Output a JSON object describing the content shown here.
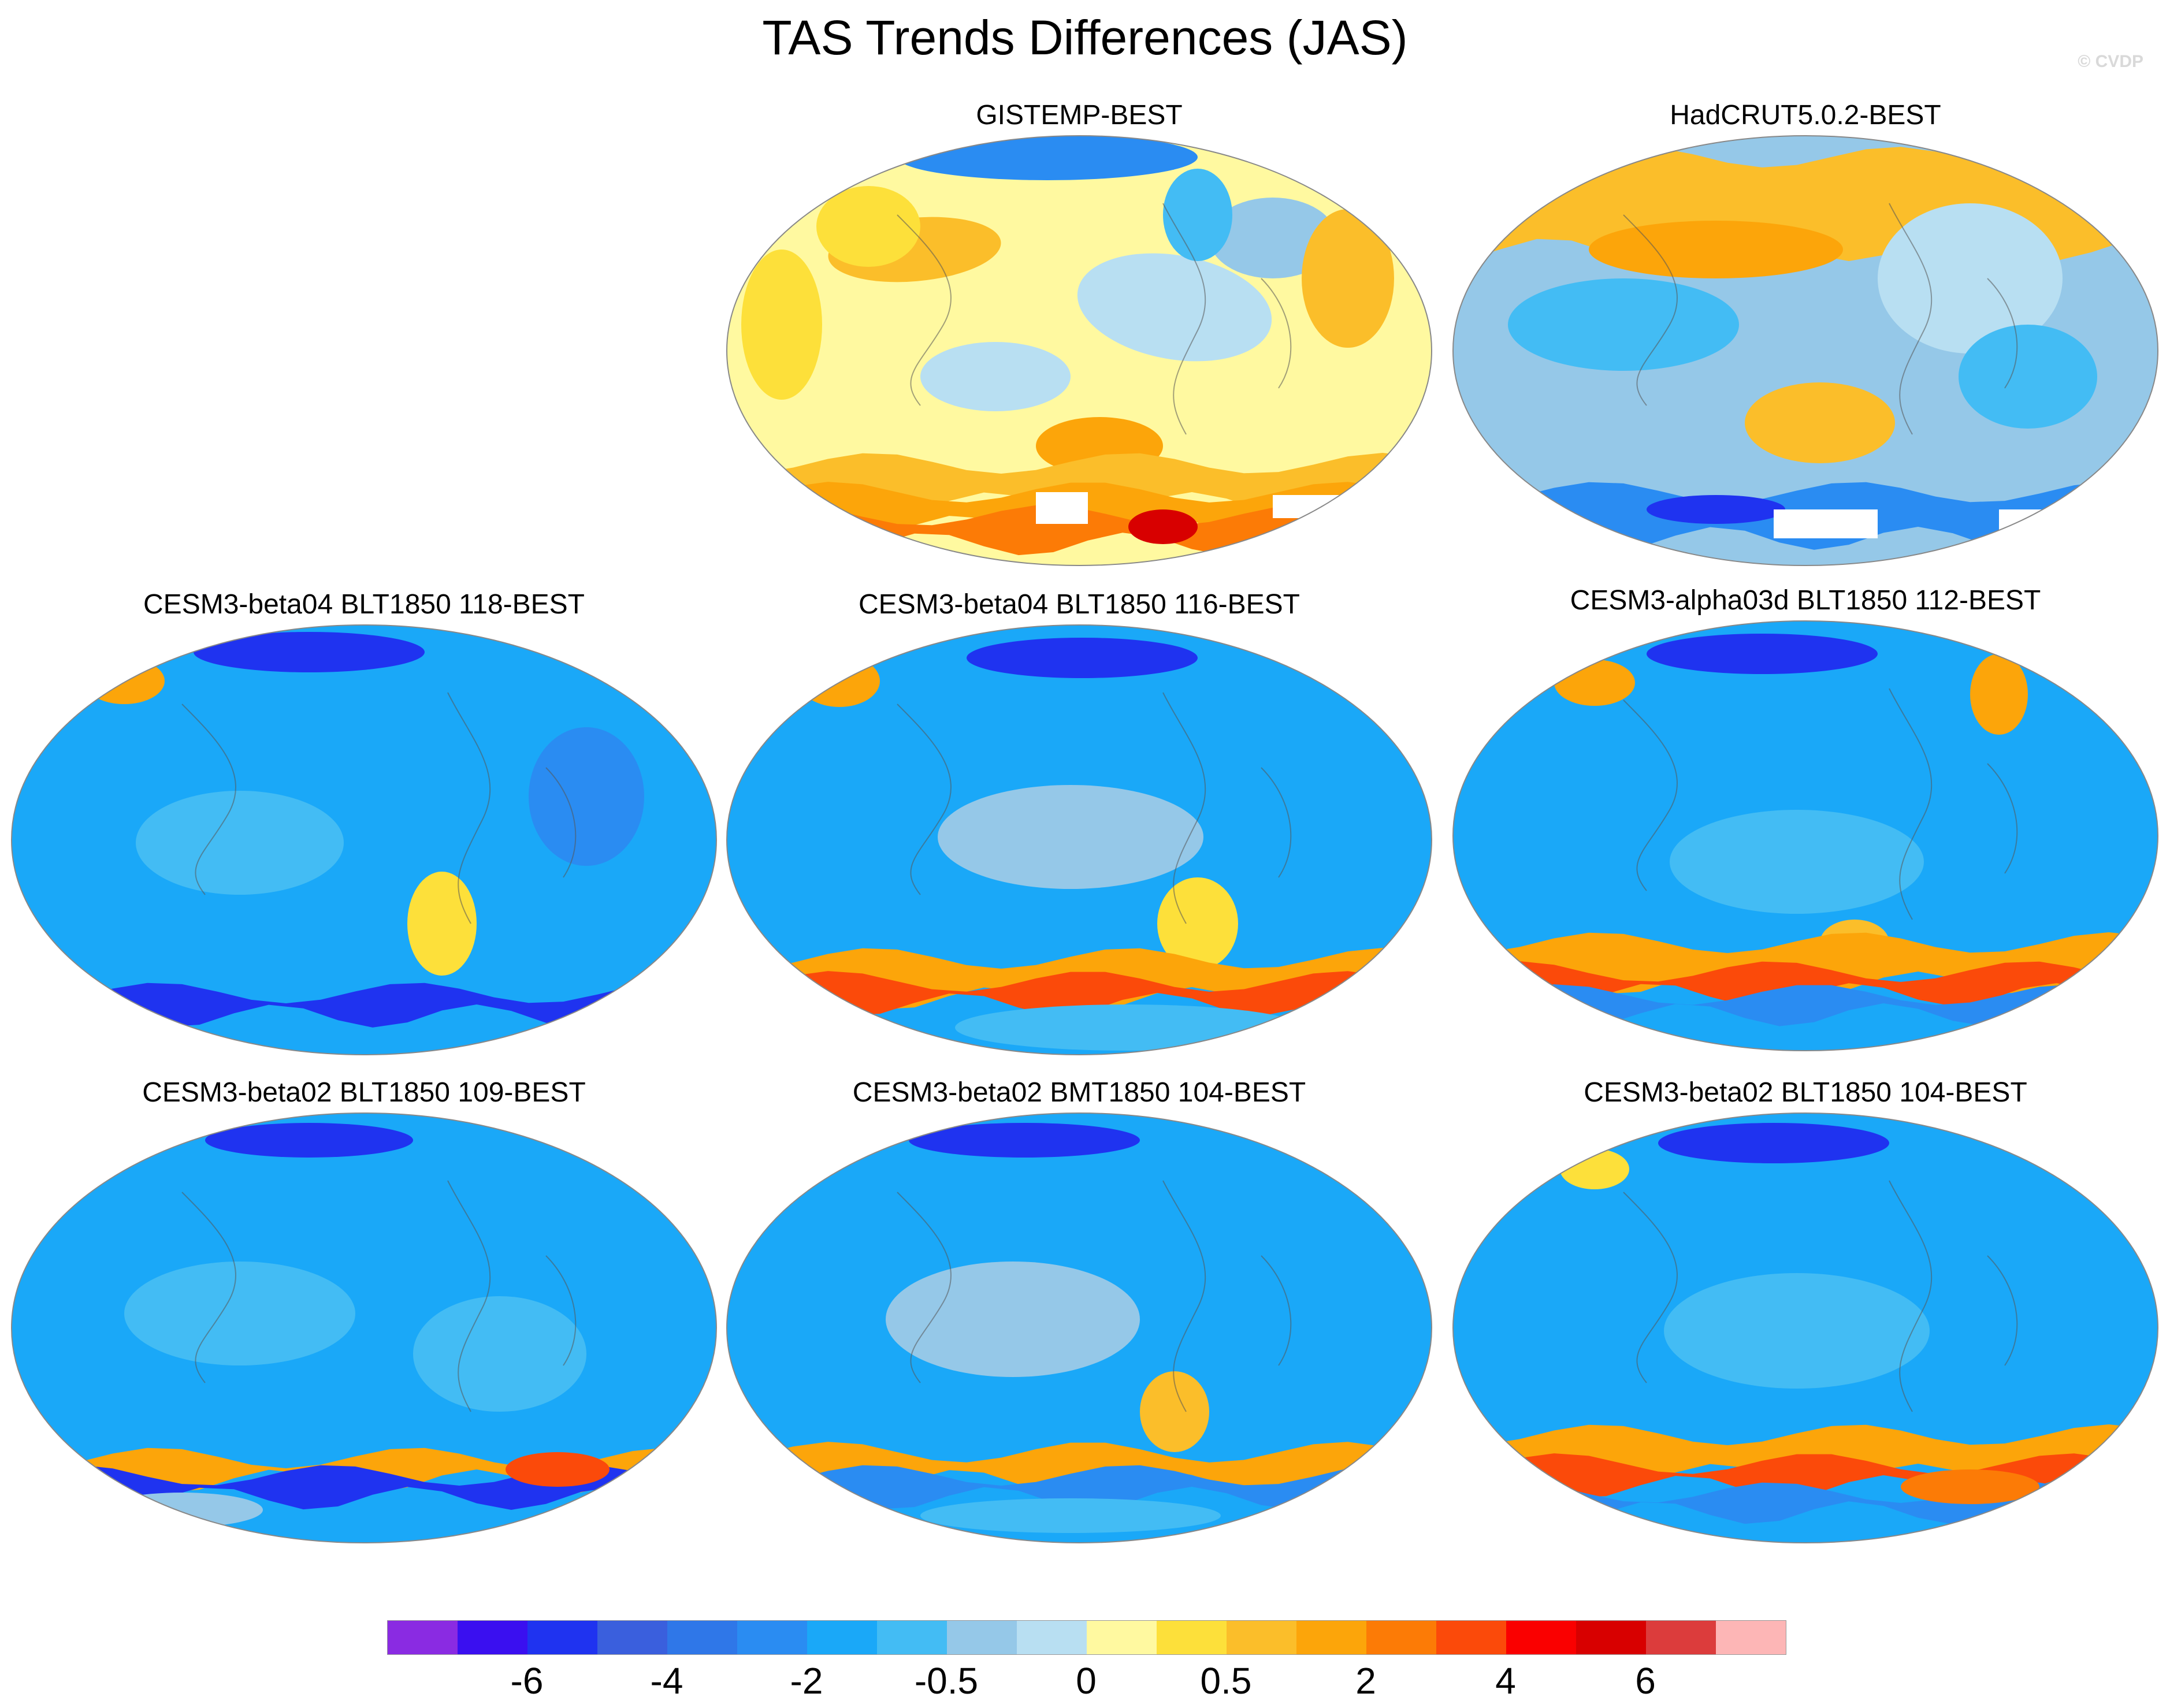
{
  "title": "TAS Trends Differences (JAS)",
  "watermark": "© CVDP",
  "panels": [
    {
      "title": "GISTEMP-BEST",
      "scheme": "obs_gistemp"
    },
    {
      "title": "HadCRUT5.0.2-BEST",
      "scheme": "obs_hadcrut"
    },
    {
      "title": "CESM3-beta04 BLT1850 118-BEST",
      "scheme": "model_a"
    },
    {
      "title": "CESM3-beta04 BLT1850 116-BEST",
      "scheme": "model_b"
    },
    {
      "title": "CESM3-alpha03d BLT1850 112-BEST",
      "scheme": "model_c"
    },
    {
      "title": "CESM3-beta02 BLT1850 109-BEST",
      "scheme": "model_d"
    },
    {
      "title": "CESM3-beta02 BMT1850 104-BEST",
      "scheme": "model_e"
    },
    {
      "title": "CESM3-beta02 BLT1850 104-BEST",
      "scheme": "model_f"
    }
  ],
  "colorbar": {
    "colors": [
      "#8a2be2",
      "#3a0ff0",
      "#1f33f0",
      "#3a5fdd",
      "#2f77e8",
      "#2a8cf2",
      "#1aa8f8",
      "#43bcf4",
      "#95c8e8",
      "#b8dff2",
      "#fff9a0",
      "#fde03a",
      "#fbbe2a",
      "#fca50a",
      "#fc7b06",
      "#fb4a0a",
      "#fa0000",
      "#d80000",
      "#dc3c3c",
      "#fdb6b6"
    ],
    "labels": [
      {
        "text": "-6",
        "boundary": 2
      },
      {
        "text": "-4",
        "boundary": 4
      },
      {
        "text": "-2",
        "boundary": 6
      },
      {
        "text": "-0.5",
        "boundary": 8
      },
      {
        "text": "0",
        "boundary": 10
      },
      {
        "text": "0.5",
        "boundary": 12
      },
      {
        "text": "2",
        "boundary": 14
      },
      {
        "text": "4",
        "boundary": 16
      },
      {
        "text": "6",
        "boundary": 18
      }
    ]
  }
}
